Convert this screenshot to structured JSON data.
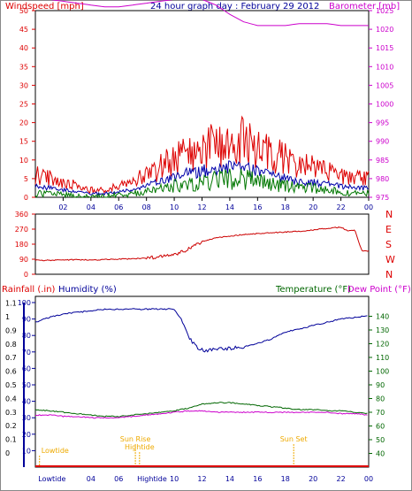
{
  "title": "24 hour graph day : February 29 2012",
  "colors": {
    "wind": "#dd0000",
    "wind_avg": "#0000aa",
    "wind_low": "#007700",
    "barometer": "#cc00cc",
    "direction": "#cc0000",
    "humidity": "#000099",
    "temperature": "#006600",
    "dewpoint": "#cc00cc",
    "rain": "#dd0000",
    "events": "#eeaa00",
    "frame": "#000000"
  },
  "hour_ticks": [
    "02",
    "04",
    "06",
    "08",
    "10",
    "12",
    "14",
    "16",
    "18",
    "20",
    "22",
    "00"
  ],
  "bottom_hour_labels": [
    "Lowtide",
    "04",
    "06",
    "Hightide",
    "10",
    "12",
    "14",
    "16",
    "18",
    "20",
    "22",
    "00"
  ],
  "chart_data": [
    {
      "type": "line",
      "id": "wind_baro",
      "left_axis_label": "Windspeed [mph]",
      "right_axis_label": "Barometer [mb]",
      "left_ticks": [
        "0",
        "5",
        "10",
        "15",
        "20",
        "25",
        "30",
        "35",
        "40",
        "45",
        "50"
      ],
      "right_ticks": [
        "975",
        "980",
        "985",
        "990",
        "995",
        "1000",
        "1005",
        "1010",
        "1015",
        "1020",
        "1025"
      ],
      "left_ylim": [
        0,
        50
      ],
      "right_ylim": [
        975,
        1025
      ],
      "xlim": [
        0,
        24
      ],
      "series": [
        {
          "key": "barometer",
          "axis": "right",
          "x": [
            0,
            1,
            2,
            3,
            4,
            5,
            6,
            7,
            8,
            9,
            10,
            11,
            12,
            13,
            14,
            15,
            16,
            17,
            18,
            19,
            20,
            21,
            22,
            23,
            24
          ],
          "values": [
            1028,
            1028,
            1027.5,
            1027,
            1026.5,
            1026,
            1026,
            1026.5,
            1027,
            1027.5,
            1028,
            1028.5,
            1028,
            1026.5,
            1024,
            1022,
            1021,
            1021,
            1021,
            1021.5,
            1021.5,
            1021.5,
            1021,
            1021,
            1021
          ]
        },
        {
          "key": "wind_gust",
          "axis": "left",
          "x": [
            0,
            1,
            2,
            3,
            4,
            5,
            6,
            7,
            8,
            9,
            10,
            11,
            12,
            13,
            14,
            15,
            16,
            17,
            18,
            19,
            20,
            21,
            22,
            23,
            24
          ],
          "values": [
            6,
            5,
            4,
            3,
            2,
            2,
            3,
            4,
            6,
            8,
            10,
            12,
            13,
            14,
            15,
            15,
            13,
            12,
            10,
            8,
            8,
            7,
            6,
            5,
            5
          ]
        },
        {
          "key": "wind_avg",
          "axis": "left",
          "x": [
            0,
            1,
            2,
            3,
            4,
            5,
            6,
            7,
            8,
            9,
            10,
            11,
            12,
            13,
            14,
            15,
            16,
            17,
            18,
            19,
            20,
            21,
            22,
            23,
            24
          ],
          "values": [
            3,
            2.5,
            2,
            1.5,
            1,
            1,
            1.5,
            2,
            3,
            4.5,
            5.5,
            6.5,
            7,
            7.5,
            8,
            8,
            7,
            6,
            5,
            4,
            4,
            3.5,
            3,
            2.5,
            2.5
          ]
        },
        {
          "key": "wind_low",
          "axis": "left",
          "x": [
            0,
            1,
            2,
            3,
            4,
            5,
            6,
            7,
            8,
            9,
            10,
            11,
            12,
            13,
            14,
            15,
            16,
            17,
            18,
            19,
            20,
            21,
            22,
            23,
            24
          ],
          "values": [
            1,
            1,
            0.5,
            0.5,
            0,
            0,
            0.5,
            1,
            1.5,
            2.5,
            3,
            3.5,
            4,
            4.5,
            5,
            5,
            4,
            3.5,
            3,
            2.5,
            2.5,
            2,
            1.5,
            1,
            1
          ]
        }
      ]
    },
    {
      "type": "line",
      "id": "direction",
      "left_ticks": [
        "0",
        "90",
        "180",
        "270",
        "360"
      ],
      "right_labels": [
        "N",
        "W",
        "S",
        "E",
        "N"
      ],
      "ylim": [
        0,
        360
      ],
      "xlim": [
        0,
        24
      ],
      "series": [
        {
          "key": "wind_direction",
          "x": [
            0,
            1,
            2,
            3,
            4,
            5,
            6,
            7,
            8,
            9,
            10,
            11,
            12,
            13,
            14,
            15,
            16,
            17,
            18,
            19,
            20,
            21,
            22,
            22.5,
            23,
            23.5,
            24
          ],
          "values": [
            85,
            83,
            85,
            87,
            85,
            88,
            90,
            92,
            97,
            105,
            118,
            150,
            195,
            218,
            228,
            238,
            243,
            248,
            253,
            257,
            265,
            275,
            282,
            260,
            265,
            140,
            140
          ]
        }
      ]
    },
    {
      "type": "line",
      "id": "rain_hum_temp",
      "left_axis_label_1": "Rainfall (.in)",
      "left_axis_label_2": "Humidity (%)",
      "right_axis_label_1": "Temperature (°F)",
      "right_axis_label_2": "Dew Point (°F)",
      "rain_ticks": [
        "0",
        "0.1",
        "0.2",
        "0.3",
        "0.4",
        "0.5",
        "0.6",
        "0.7",
        "0.8",
        "0.9",
        "1",
        "1.1"
      ],
      "humidity_ticks": [
        "10",
        "20",
        "30",
        "40",
        "50",
        "60",
        "70",
        "80",
        "90",
        "100"
      ],
      "temp_ticks": [
        "40",
        "50",
        "60",
        "70",
        "80",
        "90",
        "100",
        "110",
        "120",
        "130",
        "140"
      ],
      "humidity_ylim": [
        0,
        100
      ],
      "temp_ylim": [
        30,
        150
      ],
      "xlim": [
        0,
        24
      ],
      "series": [
        {
          "key": "humidity",
          "axis": "humidity",
          "x": [
            0,
            1,
            2,
            3,
            4,
            5,
            6,
            7,
            8,
            9,
            10,
            10.5,
            11,
            11.5,
            12,
            12.5,
            13,
            14,
            15,
            16,
            17,
            18,
            19,
            20,
            21,
            22,
            23,
            24
          ],
          "values": [
            88,
            91,
            93,
            94,
            95,
            96,
            96,
            96,
            96,
            96,
            96,
            90,
            80,
            74,
            71,
            71,
            72,
            72,
            73,
            75,
            78,
            82,
            84,
            86,
            88,
            90,
            91,
            92
          ]
        },
        {
          "key": "temperature",
          "axis": "temp",
          "x": [
            0,
            1,
            2,
            3,
            4,
            5,
            6,
            7,
            8,
            9,
            10,
            11,
            12,
            13,
            14,
            15,
            16,
            17,
            18,
            19,
            20,
            21,
            22,
            23,
            24
          ],
          "values": [
            72,
            71,
            70,
            69,
            68,
            67,
            67,
            68,
            69,
            70,
            71,
            73,
            76,
            77,
            77,
            76,
            75,
            74,
            73,
            72,
            72,
            71,
            71,
            70,
            69
          ]
        },
        {
          "key": "dewpoint",
          "axis": "temp",
          "x": [
            0,
            1,
            2,
            3,
            4,
            5,
            6,
            7,
            8,
            9,
            10,
            11,
            12,
            13,
            14,
            15,
            16,
            17,
            18,
            19,
            20,
            21,
            22,
            23,
            24
          ],
          "values": [
            68,
            68,
            67,
            67,
            66,
            66,
            66,
            67,
            68,
            69,
            70,
            71,
            71,
            70,
            70,
            70,
            70,
            70,
            70,
            70,
            70,
            70,
            69,
            69,
            68
          ]
        },
        {
          "key": "rainfall",
          "axis": "rain",
          "x": [
            0,
            24
          ],
          "values": [
            0,
            0
          ]
        }
      ],
      "events": [
        {
          "label": "Lowtide",
          "hour": 0.3,
          "label_pos": "low"
        },
        {
          "label": "Sun Rise",
          "hour": 7.2,
          "label_pos": "high"
        },
        {
          "label": "Hightide",
          "hour": 7.5,
          "label_pos": "mid"
        },
        {
          "label": "Sun Set",
          "hour": 18.6,
          "label_pos": "high"
        }
      ]
    }
  ]
}
